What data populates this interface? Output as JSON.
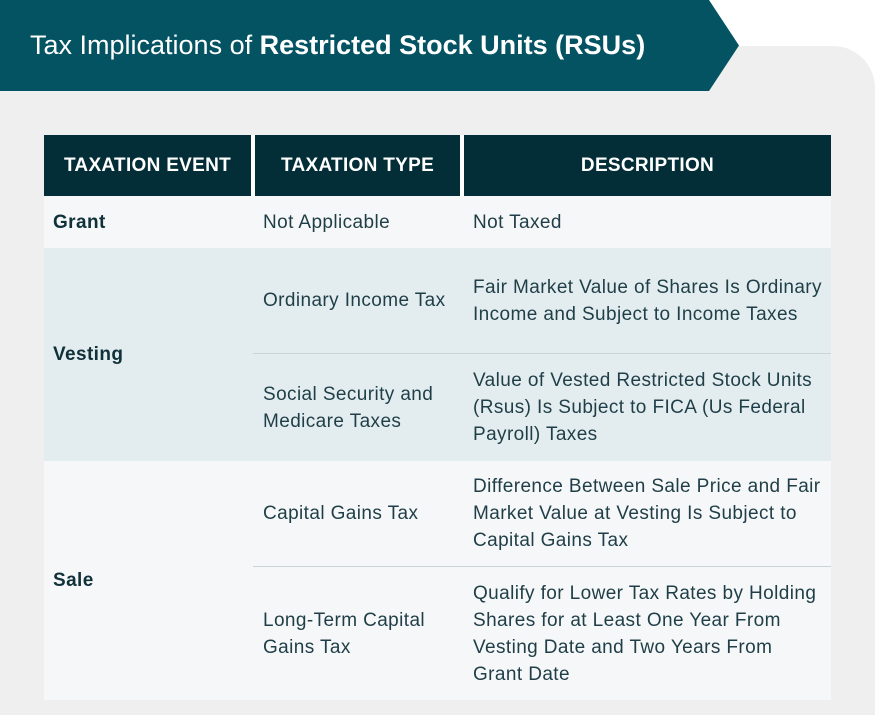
{
  "title": {
    "prefix": "Tax Implications of",
    "emphasis": "Restricted Stock Units (RSUs)"
  },
  "table": {
    "headers": [
      "TAXATION EVENT",
      "TAXATION TYPE",
      "DESCRIPTION"
    ],
    "rows": [
      {
        "event": "Grant",
        "type": "Not Applicable",
        "description": "Not Taxed"
      },
      {
        "event": "Vesting",
        "type": "Ordinary Income Tax",
        "description": "Fair Market Value of Shares Is Ordinary Income and Subject to Income Taxes"
      },
      {
        "event": "",
        "type": "Social Security and Medicare Taxes",
        "description": "Value of Vested Restricted Stock Units (Rsus) Is Subject to FICA (Us Federal Payroll) Taxes"
      },
      {
        "event": "Sale",
        "type": "Capital Gains Tax",
        "description": "Difference Between Sale Price and Fair Market Value at Vesting Is Subject to Capital Gains Tax"
      },
      {
        "event": "",
        "type": "Long-Term Capital Gains Tax",
        "description": "Qualify for Lower Tax Rates by Holding Shares for at Least One Year From Vesting Date and Two Years From Grant Date"
      }
    ]
  },
  "colors": {
    "banner": "#045362",
    "header": "#032e37",
    "band_light": "#f5f7f8",
    "band_tint": "#e3edef"
  }
}
